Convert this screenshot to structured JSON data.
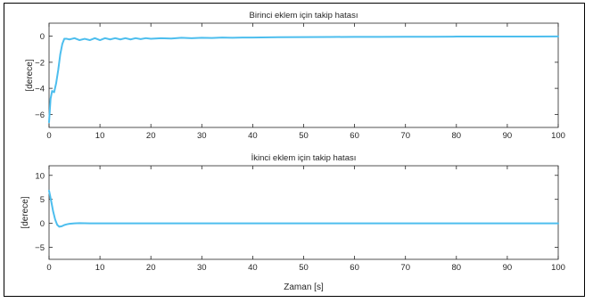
{
  "chart_data": [
    {
      "type": "line",
      "title": "Birinci eklem için takip hatası",
      "xlabel": "",
      "ylabel": "[derece]",
      "xlim": [
        0,
        100
      ],
      "ylim": [
        -7,
        1
      ],
      "xticks": [
        0,
        10,
        20,
        30,
        40,
        50,
        60,
        70,
        80,
        90,
        100
      ],
      "yticks": [
        -6,
        -4,
        -2,
        0
      ],
      "grid": false,
      "line_color": "#4dbeee",
      "series": [
        {
          "x": [
            0,
            0.3,
            0.6,
            1.0,
            1.4,
            1.8,
            2.2,
            2.6,
            3.0,
            3.5,
            4.0,
            4.5,
            5,
            6,
            7,
            8,
            9,
            10,
            11,
            12,
            13,
            14,
            15,
            16,
            17,
            18,
            19,
            20,
            22,
            24,
            26,
            28,
            30,
            32,
            34,
            36,
            38,
            40,
            45,
            50,
            55,
            60,
            65,
            70,
            75,
            80,
            85,
            90,
            95,
            100
          ],
          "y": [
            -6.6,
            -4.8,
            -4.2,
            -4.3,
            -3.6,
            -2.6,
            -1.4,
            -0.6,
            -0.2,
            -0.2,
            -0.25,
            -0.2,
            -0.15,
            -0.3,
            -0.2,
            -0.3,
            -0.15,
            -0.3,
            -0.15,
            -0.25,
            -0.15,
            -0.25,
            -0.15,
            -0.25,
            -0.15,
            -0.22,
            -0.15,
            -0.2,
            -0.15,
            -0.18,
            -0.12,
            -0.15,
            -0.12,
            -0.14,
            -0.1,
            -0.12,
            -0.1,
            -0.1,
            -0.08,
            -0.07,
            -0.06,
            -0.05,
            -0.05,
            -0.04,
            -0.04,
            -0.03,
            -0.03,
            -0.03,
            -0.03,
            -0.02
          ]
        }
      ]
    },
    {
      "type": "line",
      "title": "İkinci eklem için takip hatası",
      "xlabel": "Zaman [s]",
      "ylabel": "[derece]",
      "xlim": [
        0,
        100
      ],
      "ylim": [
        -7.5,
        12
      ],
      "xticks": [
        0,
        10,
        20,
        30,
        40,
        50,
        60,
        70,
        80,
        90,
        100
      ],
      "yticks": [
        -5,
        0,
        5,
        10
      ],
      "grid": false,
      "line_color": "#4dbeee",
      "series": [
        {
          "x": [
            0,
            0.2,
            0.5,
            0.8,
            1.2,
            1.6,
            2.0,
            2.5,
            3.0,
            3.5,
            4.0,
            5,
            6,
            8,
            10,
            15,
            20,
            30,
            40,
            50,
            60,
            70,
            80,
            90,
            100
          ],
          "y": [
            6.8,
            5.8,
            4.2,
            2.5,
            0.8,
            -0.3,
            -0.7,
            -0.6,
            -0.35,
            -0.2,
            -0.1,
            0,
            0.05,
            0,
            0,
            0,
            0,
            0,
            0,
            0,
            0,
            0,
            0,
            0,
            0
          ]
        }
      ]
    }
  ]
}
